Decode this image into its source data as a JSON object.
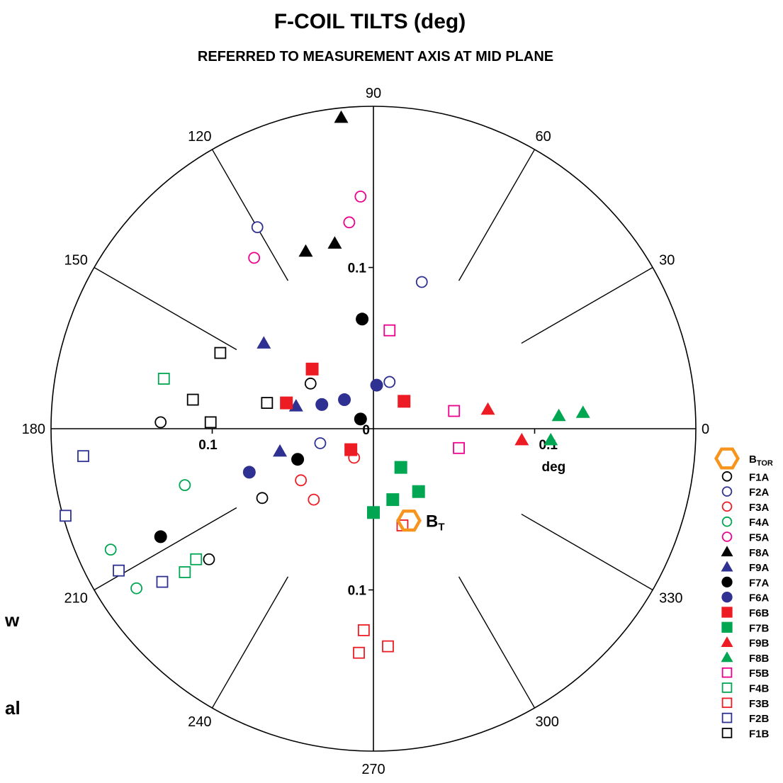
{
  "chart_data": {
    "type": "scatter",
    "coordinate_system": "polar",
    "title": "F-COIL TILTS (deg)",
    "subtitle": "REFERRED TO MEASUREMENT AXIS AT MID PLANE",
    "radial_max": 0.2,
    "radial_ticks": [
      {
        "value": 0.1,
        "label": "0.1"
      }
    ],
    "radial_unit": "deg",
    "origin_label": "0",
    "angle_tick_labels": [
      "0",
      "30",
      "60",
      "90",
      "120",
      "150",
      "180",
      "210",
      "240",
      "270",
      "300",
      "330"
    ],
    "bt": {
      "label": "B",
      "sub": "T",
      "color": "#f7941d",
      "x": 0.022,
      "y": -0.057
    },
    "legend": [
      {
        "label": "B",
        "sub": "TOR",
        "marker": "hexagon",
        "color": "#f7941d"
      },
      {
        "label": "F1A",
        "marker": "circle-open",
        "color": "#000000"
      },
      {
        "label": "F2A",
        "marker": "circle-open",
        "color": "#2e3192"
      },
      {
        "label": "F3A",
        "marker": "circle-open",
        "color": "#ed1c24"
      },
      {
        "label": "F4A",
        "marker": "circle-open",
        "color": "#00a651"
      },
      {
        "label": "F5A",
        "marker": "circle-open",
        "color": "#ec008c"
      },
      {
        "label": "F8A",
        "marker": "triangle-filled",
        "color": "#000000"
      },
      {
        "label": "F9A",
        "marker": "triangle-filled",
        "color": "#2e3192"
      },
      {
        "label": "F7A",
        "marker": "circle-filled",
        "color": "#000000"
      },
      {
        "label": "F6A",
        "marker": "circle-filled",
        "color": "#2e3192"
      },
      {
        "label": "F6B",
        "marker": "square-filled",
        "color": "#ed1c24"
      },
      {
        "label": "F7B",
        "marker": "square-filled",
        "color": "#00a651"
      },
      {
        "label": "F9B",
        "marker": "triangle-filled",
        "color": "#ed1c24"
      },
      {
        "label": "F8B",
        "marker": "triangle-filled",
        "color": "#00a651"
      },
      {
        "label": "F5B",
        "marker": "square-open",
        "color": "#ec008c"
      },
      {
        "label": "F4B",
        "marker": "square-open",
        "color": "#00a651"
      },
      {
        "label": "F3B",
        "marker": "square-open",
        "color": "#ed1c24"
      },
      {
        "label": "F2B",
        "marker": "square-open",
        "color": "#2e3192"
      },
      {
        "label": "F1B",
        "marker": "square-open",
        "color": "#000000"
      }
    ],
    "series": [
      {
        "name": "F1A",
        "marker": "circle-open",
        "color": "#000000",
        "points": [
          [
            -0.132,
            0.004
          ],
          [
            -0.039,
            0.028
          ],
          [
            -0.069,
            -0.043
          ],
          [
            -0.102,
            -0.081
          ]
        ]
      },
      {
        "name": "F2A",
        "marker": "circle-open",
        "color": "#2e3192",
        "points": [
          [
            -0.072,
            0.125
          ],
          [
            0.03,
            0.091
          ],
          [
            -0.033,
            -0.009
          ],
          [
            0.01,
            0.029
          ],
          [
            0.01,
            0.029
          ]
        ]
      },
      {
        "name": "F3A",
        "marker": "circle-open",
        "color": "#ed1c24",
        "points": [
          [
            -0.045,
            -0.032
          ],
          [
            -0.037,
            -0.044
          ],
          [
            -0.012,
            -0.018
          ]
        ]
      },
      {
        "name": "F4A",
        "marker": "circle-open",
        "color": "#00a651",
        "points": [
          [
            -0.117,
            -0.035
          ],
          [
            -0.163,
            -0.075
          ],
          [
            -0.147,
            -0.099
          ]
        ]
      },
      {
        "name": "F5A",
        "marker": "circle-open",
        "color": "#ec008c",
        "points": [
          [
            -0.074,
            0.106
          ],
          [
            -0.015,
            0.128
          ],
          [
            -0.008,
            0.144
          ]
        ]
      },
      {
        "name": "F8A",
        "marker": "triangle-filled",
        "color": "#000000",
        "points": [
          [
            -0.02,
            0.193
          ],
          [
            -0.042,
            0.11
          ],
          [
            -0.024,
            0.115
          ]
        ]
      },
      {
        "name": "F9A",
        "marker": "triangle-filled",
        "color": "#2e3192",
        "points": [
          [
            -0.068,
            0.053
          ],
          [
            -0.048,
            0.014
          ],
          [
            -0.058,
            -0.014
          ]
        ]
      },
      {
        "name": "F7A",
        "marker": "circle-filled",
        "color": "#000000",
        "points": [
          [
            -0.007,
            0.068
          ],
          [
            -0.008,
            0.006
          ],
          [
            -0.047,
            -0.019
          ],
          [
            -0.132,
            -0.067
          ]
        ]
      },
      {
        "name": "F6A",
        "marker": "circle-filled",
        "color": "#2e3192",
        "points": [
          [
            0.002,
            0.027
          ],
          [
            -0.018,
            0.018
          ],
          [
            -0.032,
            0.015
          ],
          [
            -0.077,
            -0.027
          ]
        ]
      },
      {
        "name": "F6B",
        "marker": "square-filled",
        "color": "#ed1c24",
        "points": [
          [
            -0.038,
            0.037
          ],
          [
            -0.054,
            0.016
          ],
          [
            0.019,
            0.017
          ],
          [
            -0.014,
            -0.013
          ]
        ]
      },
      {
        "name": "F7B",
        "marker": "square-filled",
        "color": "#00a651",
        "points": [
          [
            0.017,
            -0.024
          ],
          [
            0.028,
            -0.039
          ],
          [
            0.012,
            -0.044
          ],
          [
            0.0,
            -0.052
          ]
        ]
      },
      {
        "name": "F9B",
        "marker": "triangle-filled",
        "color": "#ed1c24",
        "points": [
          [
            0.071,
            0.012
          ],
          [
            0.092,
            -0.007
          ]
        ]
      },
      {
        "name": "F8B",
        "marker": "triangle-filled",
        "color": "#00a651",
        "points": [
          [
            0.115,
            0.008
          ],
          [
            0.13,
            0.01
          ],
          [
            0.11,
            -0.007
          ]
        ]
      },
      {
        "name": "F5B",
        "marker": "square-open",
        "color": "#ec008c",
        "points": [
          [
            0.01,
            0.061
          ],
          [
            0.05,
            0.011
          ],
          [
            0.053,
            -0.012
          ]
        ]
      },
      {
        "name": "F4B",
        "marker": "square-open",
        "color": "#00a651",
        "points": [
          [
            -0.13,
            0.031
          ],
          [
            -0.11,
            -0.081
          ],
          [
            -0.117,
            -0.089
          ]
        ]
      },
      {
        "name": "F3B",
        "marker": "square-open",
        "color": "#ed1c24",
        "points": [
          [
            0.018,
            -0.06
          ],
          [
            -0.006,
            -0.125
          ],
          [
            0.009,
            -0.135
          ],
          [
            -0.009,
            -0.139
          ]
        ]
      },
      {
        "name": "F2B",
        "marker": "square-open",
        "color": "#2e3192",
        "points": [
          [
            -0.18,
            -0.017
          ],
          [
            -0.191,
            -0.054
          ],
          [
            -0.158,
            -0.088
          ],
          [
            -0.131,
            -0.095
          ]
        ]
      },
      {
        "name": "F1B",
        "marker": "square-open",
        "color": "#000000",
        "points": [
          [
            -0.095,
            0.047
          ],
          [
            -0.112,
            0.018
          ],
          [
            -0.066,
            0.016
          ],
          [
            -0.101,
            0.004
          ]
        ]
      }
    ]
  },
  "side_text": {
    "line1": "w",
    "line2": "al"
  }
}
